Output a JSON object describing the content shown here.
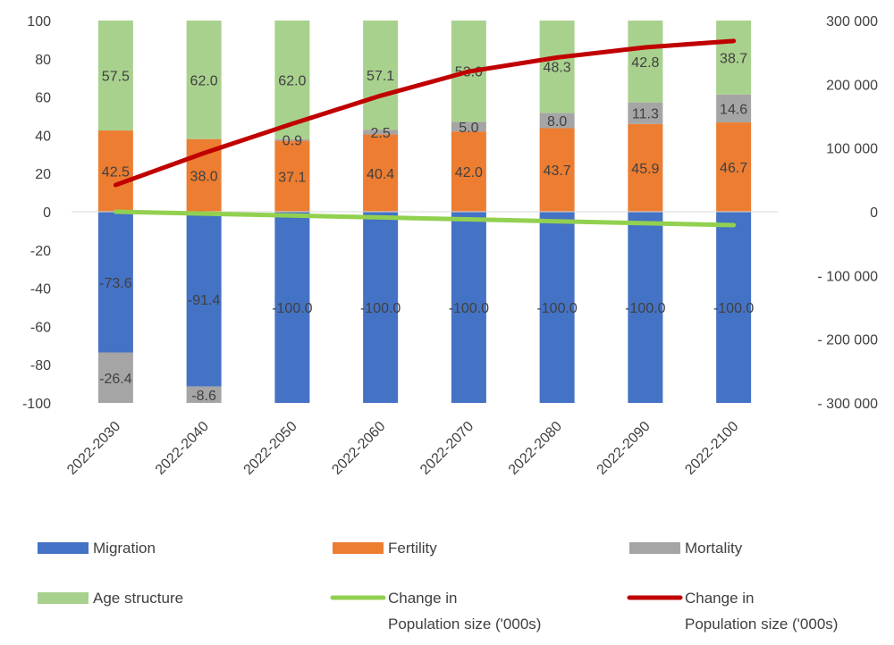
{
  "chart_data": {
    "type": "bar",
    "stacked": true,
    "categories": [
      "2022-2030",
      "2022-2040",
      "2022-2050",
      "2022-2060",
      "2022-2070",
      "2022-2080",
      "2022-2090",
      "2022-2100"
    ],
    "y_left": {
      "range": [
        -100,
        100
      ],
      "ticks": [
        100,
        80,
        60,
        40,
        20,
        0,
        -20,
        -40,
        -60,
        -80,
        -100
      ]
    },
    "y_right": {
      "range": [
        -300000,
        300000
      ],
      "ticks": [
        300000,
        200000,
        100000,
        0,
        -100000,
        -200000,
        -300000
      ],
      "tick_labels": [
        "300 000",
        "200 000",
        "100 000",
        "0",
        "- 100 000",
        "- 200 000",
        "- 300 000"
      ]
    },
    "bar_series": [
      {
        "name": "Migration",
        "color": "#4472C4",
        "values": [
          -73.6,
          -91.4,
          -100.0,
          -100.0,
          -100.0,
          -100.0,
          -100.0,
          -100.0
        ],
        "labels": [
          "-73.6",
          "-91.4",
          "-100.0",
          "-100.0",
          "-100.0",
          "-100.0",
          "-100.0",
          "-100.0"
        ]
      },
      {
        "name": "Fertility",
        "color": "#ED7D31",
        "values": [
          42.5,
          38.0,
          37.1,
          40.4,
          42.0,
          43.7,
          45.9,
          46.7
        ],
        "labels": [
          "42.5",
          "38.0",
          "37.1",
          "40.4",
          "42.0",
          "43.7",
          "45.9",
          "46.7"
        ]
      },
      {
        "name": "Mortality",
        "color": "#A5A5A5",
        "values": [
          -26.4,
          -8.6,
          0.9,
          2.5,
          5.0,
          8.0,
          11.3,
          14.6
        ],
        "labels": [
          "-26.4",
          "-8.6",
          "0.9",
          "2.5",
          "5.0",
          "8.0",
          "11.3",
          "14.6"
        ]
      },
      {
        "name": "Age structure",
        "color": "#A9D18E",
        "values": [
          57.5,
          62.0,
          62.0,
          57.1,
          53.0,
          48.3,
          42.8,
          38.7
        ],
        "labels": [
          "57.5",
          "62.0",
          "62.0",
          "57.1",
          "53.0",
          "48.3",
          "42.8",
          "38.7"
        ]
      }
    ],
    "line_series": [
      {
        "name": "Change in Population size ('000s)",
        "color": "#92D050",
        "axis": "right",
        "values": [
          0,
          -3000,
          -6000,
          -9000,
          -12000,
          -15000,
          -18000,
          -21000
        ]
      },
      {
        "name": "Change in Population size ('000s)",
        "color": "#C00000",
        "axis": "right",
        "values": [
          42000,
          92000,
          138000,
          182000,
          220000,
          242000,
          258000,
          268000
        ]
      }
    ],
    "legend": {
      "placement": "bottom",
      "items": [
        {
          "lines": [
            "Migration"
          ],
          "color": "#4472C4",
          "kind": "box"
        },
        {
          "lines": [
            "Fertility"
          ],
          "color": "#ED7D31",
          "kind": "box"
        },
        {
          "lines": [
            "Mortality"
          ],
          "color": "#A5A5A5",
          "kind": "box"
        },
        {
          "lines": [
            "Age structure"
          ],
          "color": "#A9D18E",
          "kind": "box"
        },
        {
          "lines": [
            "Change in",
            "Population size ('000s)"
          ],
          "color": "#92D050",
          "kind": "line"
        },
        {
          "lines": [
            "Change in",
            "Population size ('000s)"
          ],
          "color": "#C00000",
          "kind": "line"
        }
      ]
    },
    "grid": false
  }
}
